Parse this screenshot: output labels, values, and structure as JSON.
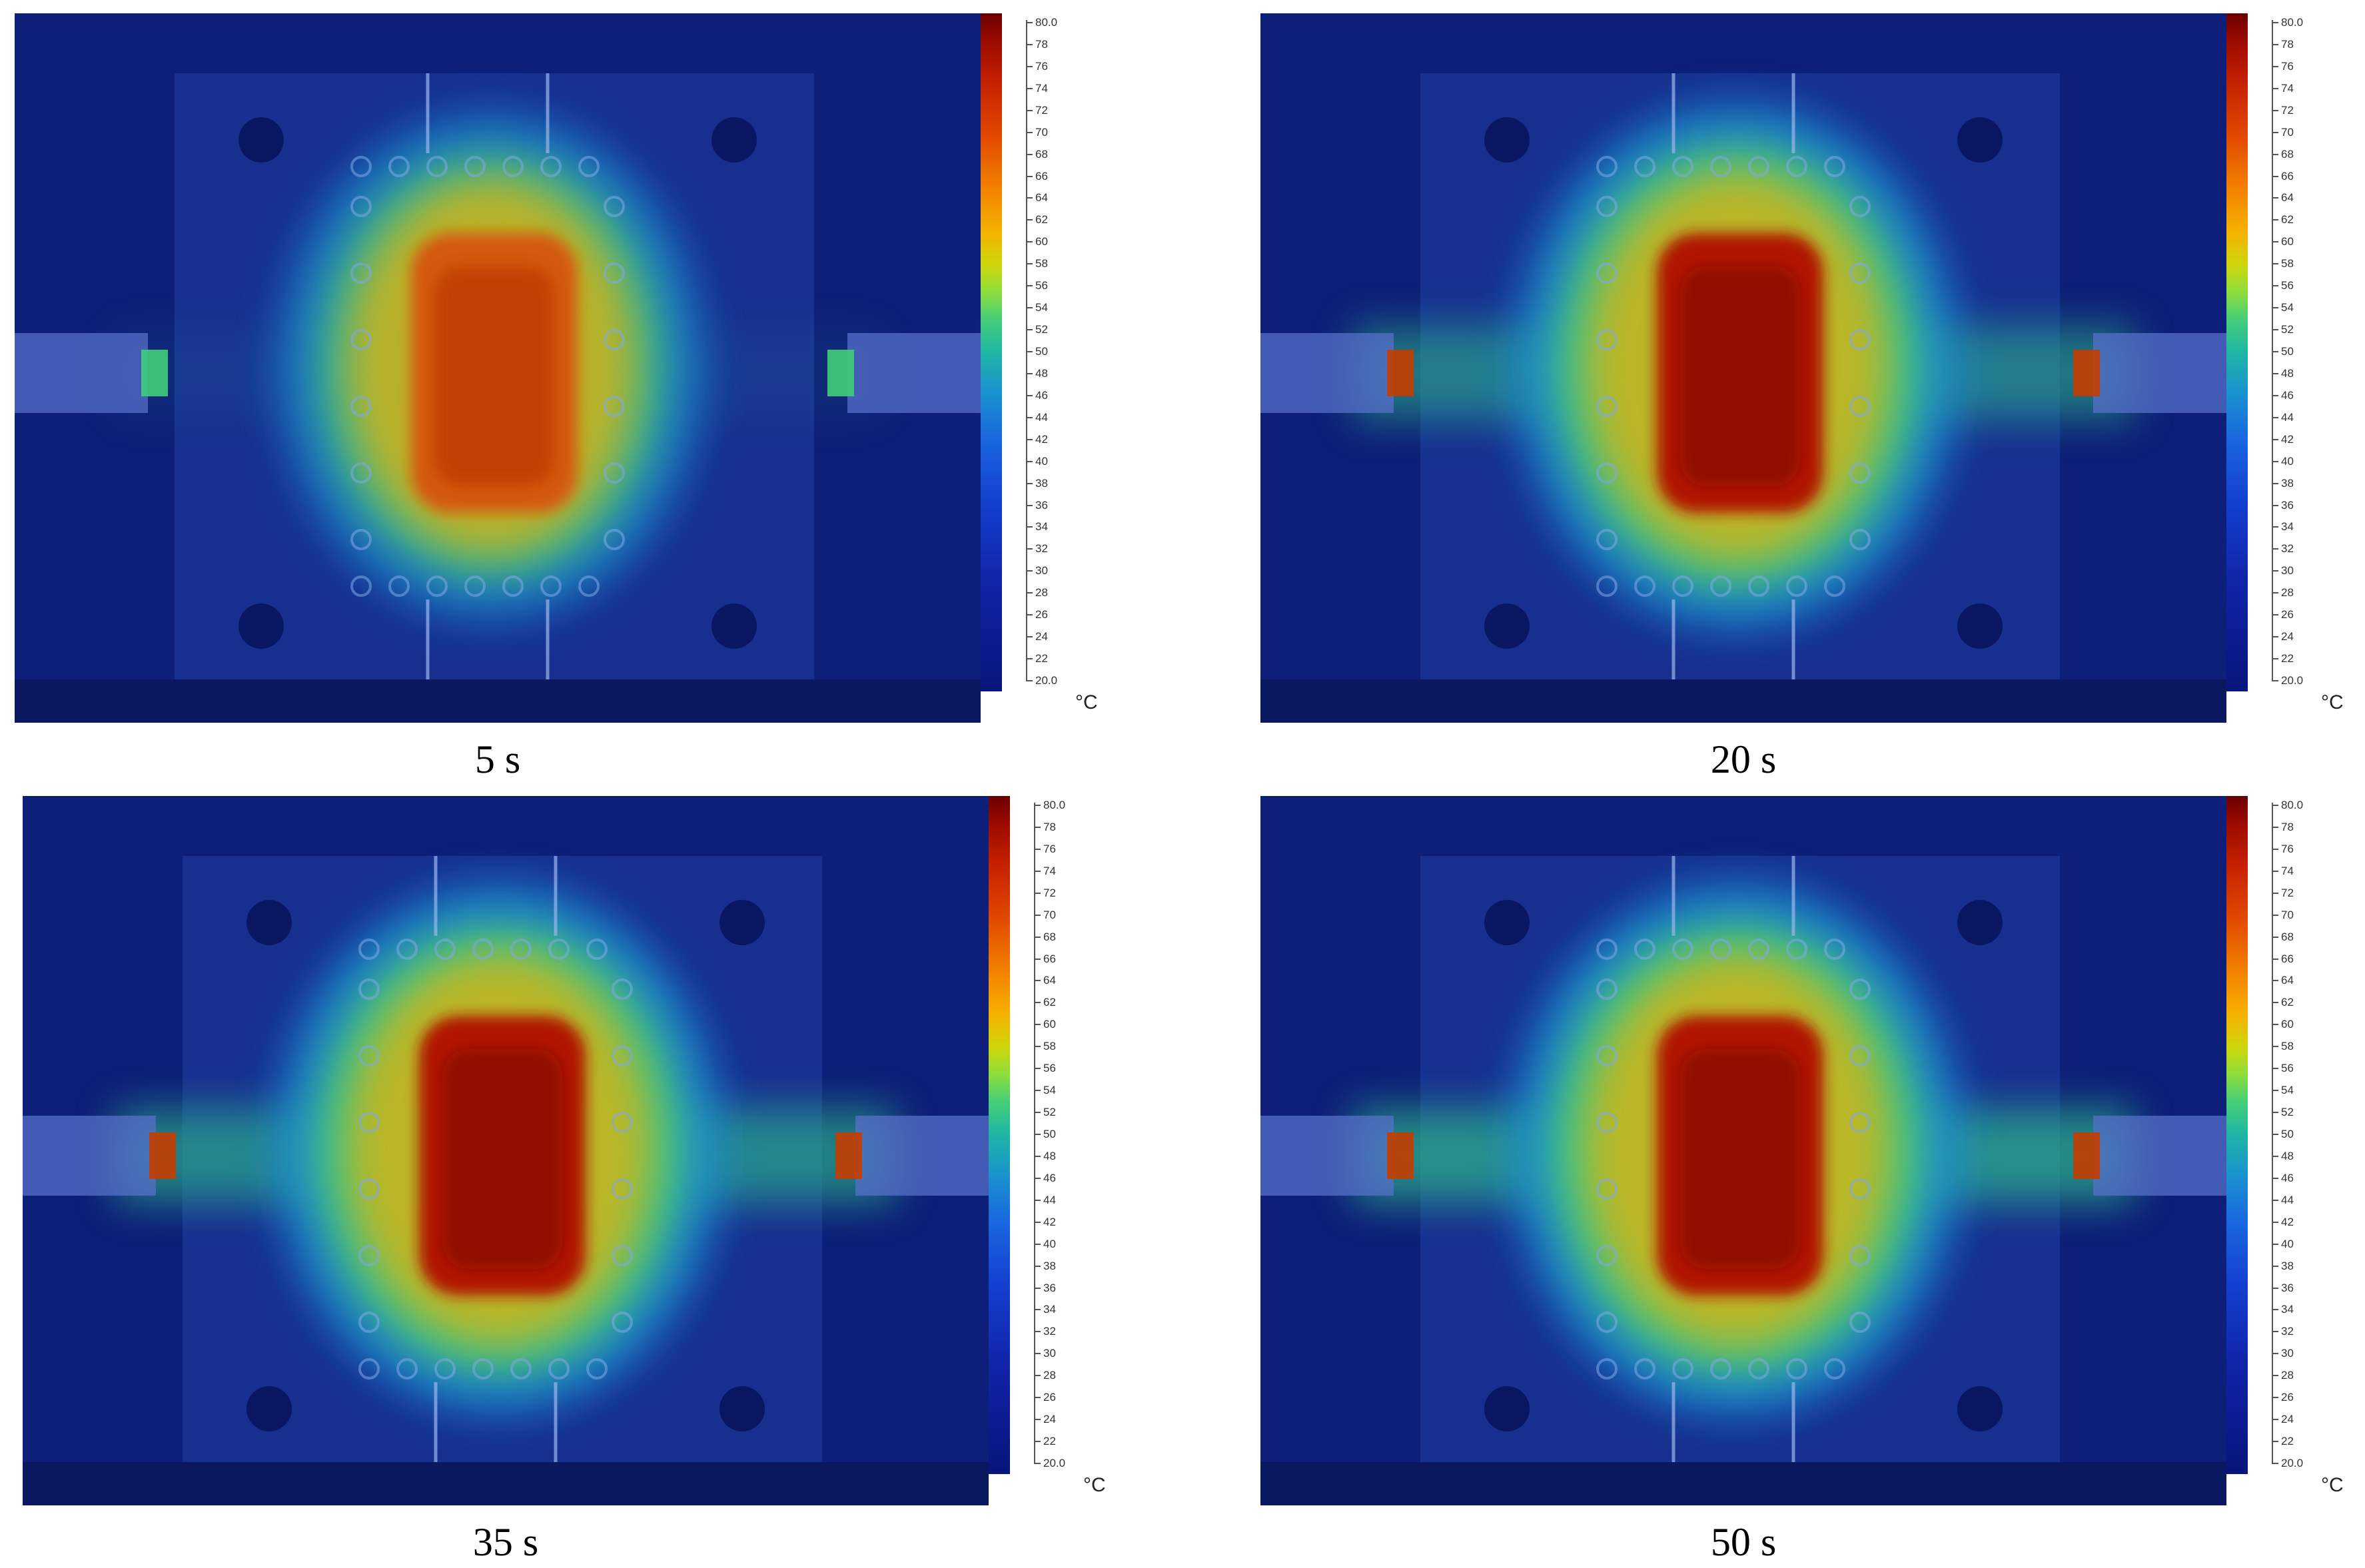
{
  "panels": [
    {
      "caption": "5 s",
      "heat": 0.55
    },
    {
      "caption": "20 s",
      "heat": 0.9
    },
    {
      "caption": "35 s",
      "heat": 0.95
    },
    {
      "caption": "50 s",
      "heat": 1.0
    }
  ],
  "colorbar": {
    "max_label": "80.0",
    "min_label": "20.0",
    "tick_labels": [
      "78",
      "76",
      "74",
      "72",
      "70",
      "68",
      "66",
      "64",
      "62",
      "60",
      "58",
      "56",
      "54",
      "52",
      "50",
      "48",
      "46",
      "44",
      "42",
      "40",
      "38",
      "36",
      "34",
      "32",
      "30",
      "28",
      "26",
      "24",
      "22"
    ],
    "unit": "°C"
  }
}
